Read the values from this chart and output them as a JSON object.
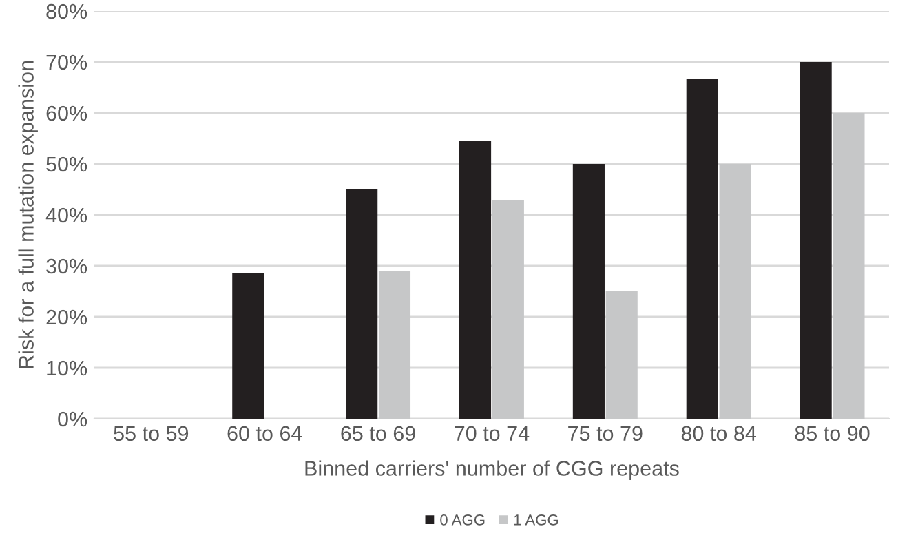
{
  "chart_data": {
    "type": "bar",
    "xlabel": "Binned carriers' number of CGG repeats",
    "ylabel": "Risk for a full mutation expansion",
    "categories": [
      "55 to 59",
      "60 to 64",
      "65 to 69",
      "70 to 74",
      "75 to 79",
      "80 to 84",
      "85 to 90"
    ],
    "series": [
      {
        "name": "0 AGG",
        "color": "#231f20",
        "values": [
          null,
          28.5,
          45,
          54.5,
          50,
          66.7,
          70
        ]
      },
      {
        "name": "1 AGG",
        "color": "#c6c7c8",
        "values": [
          null,
          null,
          29,
          42.9,
          25,
          50,
          60
        ]
      }
    ],
    "ylim": [
      0,
      80
    ],
    "yticks": [
      {
        "value": 0,
        "label": "0%"
      },
      {
        "value": 10,
        "label": "10%"
      },
      {
        "value": 20,
        "label": "20%"
      },
      {
        "value": 30,
        "label": "30%"
      },
      {
        "value": 40,
        "label": "40%"
      },
      {
        "value": 50,
        "label": "50%"
      },
      {
        "value": 60,
        "label": "60%"
      },
      {
        "value": 70,
        "label": "70%"
      },
      {
        "value": 80,
        "label": "80%"
      }
    ],
    "grid": "y",
    "legend": "bottom"
  }
}
